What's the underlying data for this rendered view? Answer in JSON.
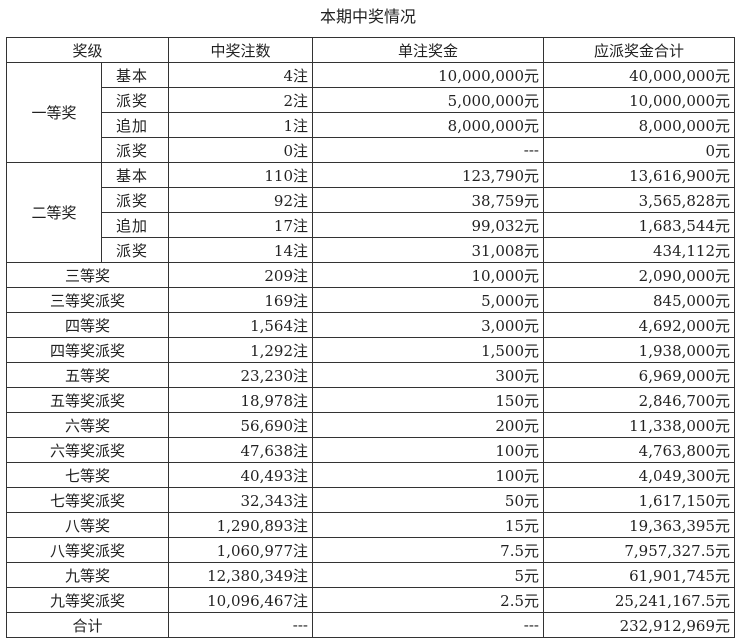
{
  "title": "本期中奖情况",
  "headers": {
    "level": "奖级",
    "count": "中奖注数",
    "unit_prize": "单注奖金",
    "total_prize": "应派奖金合计"
  },
  "first_prize": {
    "label": "一等奖",
    "rows": [
      {
        "sub": "基本",
        "count": "4注",
        "unit": "10,000,000元",
        "total": "40,000,000元"
      },
      {
        "sub": "派奖",
        "count": "2注",
        "unit": "5,000,000元",
        "total": "10,000,000元"
      },
      {
        "sub": "追加",
        "count": "1注",
        "unit": "8,000,000元",
        "total": "8,000,000元"
      },
      {
        "sub": "派奖",
        "count": "0注",
        "unit": "---",
        "total": "0元"
      }
    ]
  },
  "second_prize": {
    "label": "二等奖",
    "rows": [
      {
        "sub": "基本",
        "count": "110注",
        "unit": "123,790元",
        "total": "13,616,900元"
      },
      {
        "sub": "派奖",
        "count": "92注",
        "unit": "38,759元",
        "total": "3,565,828元"
      },
      {
        "sub": "追加",
        "count": "17注",
        "unit": "99,032元",
        "total": "1,683,544元"
      },
      {
        "sub": "派奖",
        "count": "14注",
        "unit": "31,008元",
        "total": "434,112元"
      }
    ]
  },
  "rows": [
    {
      "level": "三等奖",
      "count": "209注",
      "unit": "10,000元",
      "total": "2,090,000元"
    },
    {
      "level": "三等奖派奖",
      "count": "169注",
      "unit": "5,000元",
      "total": "845,000元"
    },
    {
      "level": "四等奖",
      "count": "1,564注",
      "unit": "3,000元",
      "total": "4,692,000元"
    },
    {
      "level": "四等奖派奖",
      "count": "1,292注",
      "unit": "1,500元",
      "total": "1,938,000元"
    },
    {
      "level": "五等奖",
      "count": "23,230注",
      "unit": "300元",
      "total": "6,969,000元"
    },
    {
      "level": "五等奖派奖",
      "count": "18,978注",
      "unit": "150元",
      "total": "2,846,700元"
    },
    {
      "level": "六等奖",
      "count": "56,690注",
      "unit": "200元",
      "total": "11,338,000元"
    },
    {
      "level": "六等奖派奖",
      "count": "47,638注",
      "unit": "100元",
      "total": "4,763,800元"
    },
    {
      "level": "七等奖",
      "count": "40,493注",
      "unit": "100元",
      "total": "4,049,300元"
    },
    {
      "level": "七等奖派奖",
      "count": "32,343注",
      "unit": "50元",
      "total": "1,617,150元"
    },
    {
      "level": "八等奖",
      "count": "1,290,893注",
      "unit": "15元",
      "total": "19,363,395元"
    },
    {
      "level": "八等奖派奖",
      "count": "1,060,977注",
      "unit": "7.5元",
      "total": "7,957,327.5元"
    },
    {
      "level": "九等奖",
      "count": "12,380,349注",
      "unit": "5元",
      "total": "61,901,745元"
    },
    {
      "level": "九等奖派奖",
      "count": "10,096,467注",
      "unit": "2.5元",
      "total": "25,241,167.5元"
    }
  ],
  "total_row": {
    "level": "合计",
    "count": "---",
    "unit": "---",
    "total": "232,912,969元"
  }
}
